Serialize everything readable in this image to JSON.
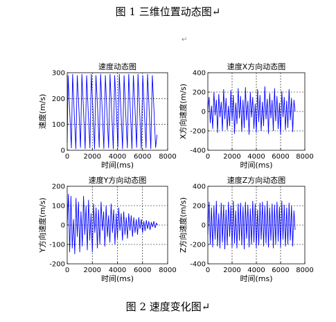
{
  "captions": {
    "top": "图 1  三维位置动态图↵",
    "bottom": "图 2  速度变化图↵",
    "mid_mark": "↵"
  },
  "colors": {
    "series": "#0000ff",
    "axis": "#000000",
    "grid": "#000000"
  },
  "chart_data": [
    {
      "type": "line",
      "title": "速度动态图",
      "xlabel": "时间(ms)",
      "ylabel": "速度(m/s)",
      "xlim": [
        0,
        8000
      ],
      "ylim": [
        0,
        300
      ],
      "xticks": [
        0,
        2000,
        4000,
        6000,
        8000
      ],
      "yticks": [
        0,
        100,
        200,
        300
      ],
      "grid": true,
      "series": [
        {
          "x": [
            0,
            70,
            200,
            330,
            430,
            560,
            690,
            800,
            930,
            1060,
            1170,
            1300,
            1430,
            1550,
            1680,
            1810,
            1920,
            2050,
            2180,
            2290,
            2420,
            2550,
            2660,
            2790,
            2920,
            3040,
            3170,
            3300,
            3410,
            3540,
            3670,
            3780,
            3910,
            4040,
            4150,
            4280,
            4410,
            4530,
            4660,
            4790,
            4900,
            5030,
            5160,
            5270,
            5400,
            5530,
            5640,
            5770,
            5900,
            6020,
            6150,
            6280,
            6400,
            6530,
            6660,
            6780,
            6910,
            7040,
            7150
          ],
          "y": [
            30,
            290,
            150,
            8,
            295,
            140,
            5,
            290,
            160,
            10,
            295,
            150,
            5,
            290,
            140,
            8,
            295,
            150,
            5,
            290,
            160,
            10,
            295,
            150,
            5,
            290,
            140,
            8,
            295,
            150,
            5,
            290,
            160,
            10,
            295,
            150,
            5,
            290,
            140,
            8,
            295,
            150,
            5,
            290,
            160,
            10,
            295,
            150,
            5,
            290,
            140,
            8,
            295,
            150,
            5,
            290,
            160,
            10,
            60
          ]
        }
      ]
    },
    {
      "type": "line",
      "title": "速度X方向动态图",
      "xlabel": "时间(ms)",
      "ylabel": "X方向速度(m/s)",
      "xlim": [
        0,
        8000
      ],
      "ylim": [
        -400,
        400
      ],
      "xticks": [
        0,
        2000,
        4000,
        6000,
        8000
      ],
      "yticks": [
        -400,
        -200,
        0,
        200,
        400
      ],
      "grid": true,
      "series": [
        {
          "x": [
            0,
            100,
            200,
            300,
            400,
            500,
            600,
            700,
            800,
            900,
            1000,
            1100,
            1200,
            1300,
            1400,
            1500,
            1600,
            1700,
            1800,
            1900,
            2000,
            2100,
            2200,
            2300,
            2400,
            2500,
            2600,
            2700,
            2800,
            2900,
            3000,
            3100,
            3200,
            3300,
            3400,
            3500,
            3600,
            3700,
            3800,
            3900,
            4000,
            4100,
            4200,
            4300,
            4400,
            4500,
            4600,
            4700,
            4800,
            4900,
            5000,
            5100,
            5200,
            5300,
            5400,
            5500,
            5600,
            5700,
            5800,
            5900,
            6000,
            6100,
            6200,
            6300,
            6400,
            6500,
            6600,
            6700,
            6800,
            6900,
            7000,
            7100,
            7200
          ],
          "y": [
            0,
            150,
            -120,
            60,
            -180,
            200,
            -40,
            120,
            -220,
            180,
            -60,
            100,
            -200,
            230,
            -80,
            140,
            -190,
            60,
            -150,
            220,
            -100,
            170,
            -230,
            90,
            -130,
            240,
            -70,
            160,
            -210,
            120,
            -170,
            250,
            -90,
            110,
            -240,
            200,
            -60,
            150,
            -180,
            80,
            -220,
            230,
            -110,
            170,
            -200,
            100,
            -150,
            260,
            -80,
            130,
            -230,
            190,
            -70,
            120,
            -200,
            240,
            -100,
            160,
            -180,
            90,
            -240,
            210,
            -60,
            150,
            -190,
            110,
            -170,
            230,
            -90,
            140,
            -210,
            120,
            0
          ]
        }
      ]
    },
    {
      "type": "line",
      "title": "速度Y方向动态图",
      "xlabel": "时间(ms)",
      "ylabel": "Y方向速度(m/s)",
      "xlim": [
        0,
        8000
      ],
      "ylim": [
        -200,
        200
      ],
      "xticks": [
        0,
        2000,
        4000,
        6000,
        8000
      ],
      "yticks": [
        -200,
        -100,
        0,
        100,
        200
      ],
      "grid": true,
      "series": [
        {
          "x": [
            0,
            100,
            200,
            300,
            400,
            500,
            600,
            700,
            800,
            900,
            1000,
            1100,
            1200,
            1300,
            1400,
            1500,
            1600,
            1700,
            1800,
            1900,
            2000,
            2100,
            2200,
            2300,
            2400,
            2500,
            2600,
            2700,
            2800,
            2900,
            3000,
            3100,
            3200,
            3300,
            3400,
            3500,
            3600,
            3700,
            3800,
            3900,
            4000,
            4100,
            4200,
            4300,
            4400,
            4500,
            4600,
            4700,
            4800,
            4900,
            5000,
            5100,
            5200,
            5300,
            5400,
            5500,
            5600,
            5700,
            5800,
            5900,
            6000,
            6100,
            6200,
            6300,
            6400,
            6500,
            6600,
            6700,
            6800,
            6900,
            7000,
            7100,
            7200
          ],
          "y": [
            0,
            160,
            -140,
            150,
            -120,
            30,
            -150,
            140,
            -60,
            120,
            -140,
            70,
            -110,
            150,
            -50,
            100,
            -130,
            130,
            -80,
            60,
            -140,
            110,
            -40,
            90,
            -120,
            80,
            -100,
            120,
            -30,
            70,
            -110,
            100,
            -60,
            50,
            -90,
            110,
            -40,
            80,
            -100,
            60,
            -70,
            90,
            -30,
            60,
            -80,
            70,
            -50,
            40,
            -70,
            60,
            -30,
            50,
            -60,
            40,
            -40,
            30,
            -50,
            40,
            -20,
            30,
            -40,
            20,
            -30,
            25,
            -20,
            20,
            -25,
            15,
            -10,
            20,
            -15,
            10,
            0
          ]
        }
      ]
    },
    {
      "type": "line",
      "title": "速度Z方向动态图",
      "xlabel": "时间(ms)",
      "ylabel": "Z方向速度(m/s)",
      "xlim": [
        0,
        8000
      ],
      "ylim": [
        -400,
        400
      ],
      "xticks": [
        0,
        2000,
        4000,
        6000,
        8000
      ],
      "yticks": [
        -400,
        -200,
        0,
        200,
        400
      ],
      "grid": true,
      "series": [
        {
          "x": [
            0,
            100,
            200,
            300,
            400,
            500,
            600,
            700,
            800,
            900,
            1000,
            1100,
            1200,
            1300,
            1400,
            1500,
            1600,
            1700,
            1800,
            1900,
            2000,
            2100,
            2200,
            2300,
            2400,
            2500,
            2600,
            2700,
            2800,
            2900,
            3000,
            3100,
            3200,
            3300,
            3400,
            3500,
            3600,
            3700,
            3800,
            3900,
            4000,
            4100,
            4200,
            4300,
            4400,
            4500,
            4600,
            4700,
            4800,
            4900,
            5000,
            5100,
            5200,
            5300,
            5400,
            5500,
            5600,
            5700,
            5800,
            5900,
            6000,
            6100,
            6200,
            6300,
            6400,
            6500,
            6600,
            6700,
            6800,
            6900,
            7000,
            7100,
            7200
          ],
          "y": [
            -100,
            240,
            -200,
            180,
            -230,
            200,
            -150,
            250,
            -220,
            120,
            -240,
            230,
            -180,
            210,
            -250,
            160,
            -210,
            240,
            -120,
            200,
            -230,
            250,
            -190,
            150,
            -240,
            220,
            -160,
            230,
            -210,
            190,
            -250,
            240,
            -140,
            210,
            -230,
            170,
            -200,
            250,
            -180,
            220,
            -240,
            160,
            -210,
            230,
            -150,
            240,
            -220,
            200,
            -190,
            250,
            -230,
            180,
            -160,
            220,
            -240,
            210,
            -200,
            240,
            -170,
            190,
            -230,
            250,
            -150,
            210,
            -220,
            180,
            -200,
            230,
            -160,
            200,
            -220,
            150,
            -50
          ]
        }
      ]
    }
  ]
}
